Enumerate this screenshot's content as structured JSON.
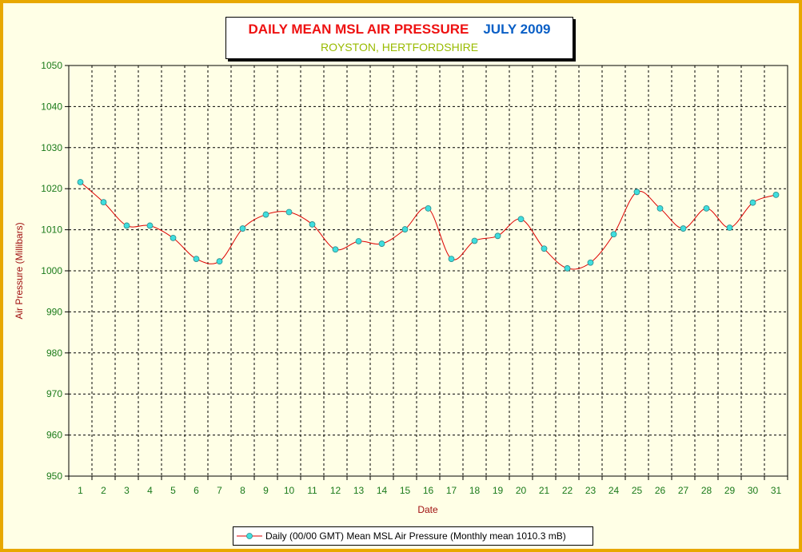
{
  "title": {
    "main": "DAILY MEAN MSL AIR PRESSURE",
    "date": "JULY 2009",
    "location": "ROYSTON, HERTFORDSHIRE"
  },
  "colors": {
    "frame_border": "#e8a800",
    "background": "#ffffe6",
    "title_red": "#ee1111",
    "title_blue": "#0a5fc6",
    "location_green": "#99bb00",
    "tick_green": "#1a7a1a",
    "axis_label_red": "#a01010",
    "line": "#dd0000",
    "marker": "#40dede"
  },
  "legend": {
    "label": "Daily (00/00 GMT) Mean MSL Air Pressure (Monthly mean 1010.3 mB)"
  },
  "chart_data": {
    "type": "line",
    "title": "DAILY MEAN MSL AIR PRESSURE",
    "subtitle": "ROYSTON, HERTFORDSHIRE",
    "xlabel": "Date",
    "ylabel": "Air Pressure (Millibars)",
    "ylim": [
      950,
      1050
    ],
    "yticks": [
      950,
      960,
      970,
      980,
      990,
      1000,
      1010,
      1020,
      1030,
      1040,
      1050
    ],
    "grid": true,
    "legend_position": "bottom",
    "x": [
      1,
      2,
      3,
      4,
      5,
      6,
      7,
      8,
      9,
      10,
      11,
      12,
      13,
      14,
      15,
      16,
      17,
      18,
      19,
      20,
      21,
      22,
      23,
      24,
      25,
      26,
      27,
      28,
      29,
      30,
      31
    ],
    "series": [
      {
        "name": "Daily (00/00 GMT) Mean MSL Air Pressure (Monthly mean 1010.3 mB)",
        "values": [
          1021.6,
          1016.7,
          1011.0,
          1011.0,
          1008.0,
          1002.9,
          1002.3,
          1010.3,
          1013.7,
          1014.3,
          1011.3,
          1005.2,
          1007.2,
          1006.6,
          1010.1,
          1015.2,
          1002.9,
          1007.3,
          1008.5,
          1012.6,
          1005.4,
          1000.6,
          1002.0,
          1008.9,
          1019.2,
          1015.2,
          1010.3,
          1015.2,
          1010.5,
          1016.6,
          1018.5
        ]
      }
    ]
  }
}
